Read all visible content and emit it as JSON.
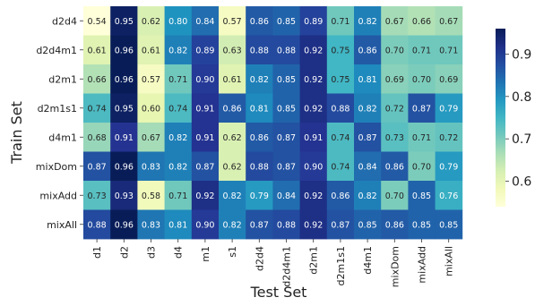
{
  "chart_data": {
    "type": "heatmap",
    "xlabel": "Test Set",
    "ylabel": "Train Set",
    "x_categories": [
      "d1",
      "d2",
      "d3",
      "d4",
      "m1",
      "s1",
      "d2d4",
      "d2d4m1",
      "d2m1",
      "d2m1s1",
      "d4m1",
      "mixDom",
      "mixAdd",
      "mixAll"
    ],
    "y_categories": [
      "d2d4",
      "d2d4m1",
      "d2m1",
      "d2m1s1",
      "d4m1",
      "mixDom",
      "mixAdd",
      "mixAll"
    ],
    "values": [
      [
        0.54,
        0.95,
        0.62,
        0.8,
        0.84,
        0.57,
        0.86,
        0.85,
        0.89,
        0.71,
        0.82,
        0.67,
        0.66,
        0.67
      ],
      [
        0.61,
        0.96,
        0.61,
        0.82,
        0.89,
        0.63,
        0.88,
        0.88,
        0.92,
        0.75,
        0.86,
        0.7,
        0.71,
        0.71
      ],
      [
        0.66,
        0.96,
        0.57,
        0.71,
        0.9,
        0.61,
        0.82,
        0.85,
        0.92,
        0.75,
        0.81,
        0.69,
        0.7,
        0.69
      ],
      [
        0.74,
        0.95,
        0.6,
        0.74,
        0.91,
        0.86,
        0.81,
        0.85,
        0.92,
        0.88,
        0.82,
        0.72,
        0.87,
        0.79
      ],
      [
        0.68,
        0.91,
        0.67,
        0.82,
        0.91,
        0.62,
        0.86,
        0.87,
        0.91,
        0.74,
        0.87,
        0.73,
        0.71,
        0.72
      ],
      [
        0.87,
        0.96,
        0.83,
        0.82,
        0.87,
        0.62,
        0.88,
        0.87,
        0.9,
        0.74,
        0.84,
        0.86,
        0.7,
        0.79
      ],
      [
        0.73,
        0.93,
        0.58,
        0.71,
        0.92,
        0.82,
        0.79,
        0.84,
        0.92,
        0.86,
        0.82,
        0.7,
        0.85,
        0.76
      ],
      [
        0.88,
        0.96,
        0.83,
        0.81,
        0.9,
        0.82,
        0.87,
        0.88,
        0.92,
        0.87,
        0.85,
        0.86,
        0.85,
        0.85
      ]
    ],
    "colormap": "YlGnBu",
    "value_range": [
      0.54,
      0.96
    ],
    "colorbar_ticks": [
      0.6,
      0.7,
      0.8,
      0.9
    ],
    "colorbar_tick_labels": [
      "0.6",
      "0.7",
      "0.8",
      "0.9"
    ],
    "annotated": true,
    "grid": false
  }
}
